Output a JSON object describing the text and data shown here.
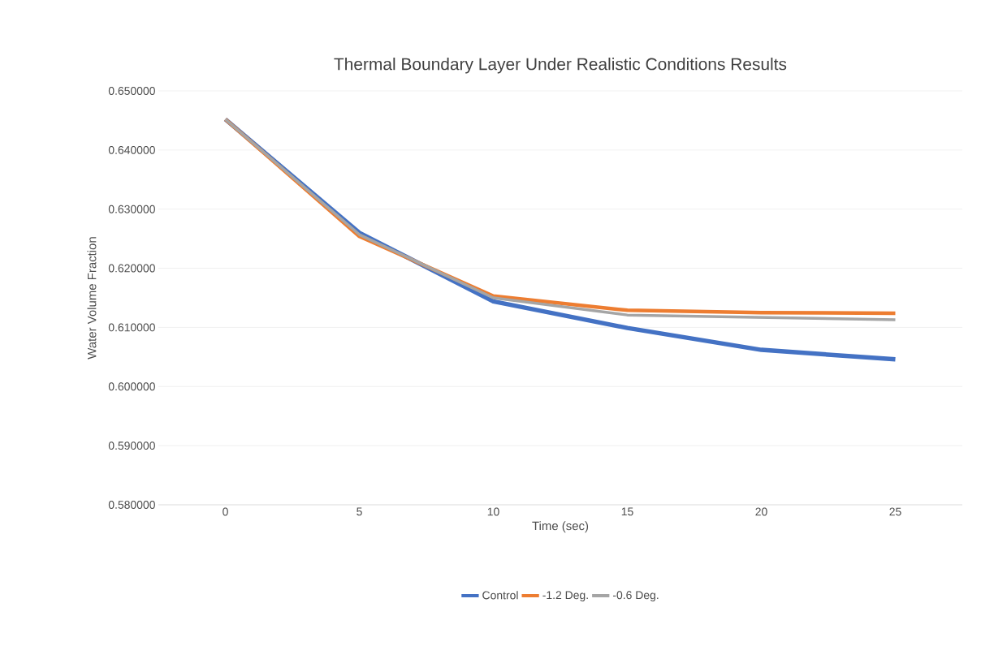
{
  "chart_data": {
    "type": "line",
    "title": "Thermal Boundary Layer Under Realistic Conditions Results",
    "xlabel": "Time (sec)",
    "ylabel": "Water Volume Fraction",
    "categories": [
      "0",
      "5",
      "10",
      "15",
      "20",
      "25"
    ],
    "series": [
      {
        "name": "Control",
        "color": "#4472c4",
        "values": [
          0.6452,
          0.626,
          0.6144,
          0.6099,
          0.6062,
          0.6046
        ]
      },
      {
        "name": "-1.2 Deg.",
        "color": "#ed7d31",
        "values": [
          0.6452,
          0.6254,
          0.6153,
          0.6129,
          0.6125,
          0.6124
        ]
      },
      {
        "name": "-0.6 Deg.",
        "color": "#a5a5a5",
        "values": [
          0.6452,
          0.6257,
          0.615,
          0.6121,
          0.6117,
          0.6113
        ]
      }
    ],
    "ylim": [
      0.58,
      0.65
    ],
    "yticks": [
      {
        "value": 0.58,
        "label": "0.580000"
      },
      {
        "value": 0.59,
        "label": "0.590000"
      },
      {
        "value": 0.6,
        "label": "0.600000"
      },
      {
        "value": 0.61,
        "label": "0.610000"
      },
      {
        "value": 0.62,
        "label": "0.620000"
      },
      {
        "value": 0.63,
        "label": "0.630000"
      },
      {
        "value": 0.64,
        "label": "0.640000"
      },
      {
        "value": 0.65,
        "label": "0.650000"
      }
    ],
    "grid": "y",
    "legend": "bottom",
    "marker": "none",
    "line_style": "solid"
  }
}
